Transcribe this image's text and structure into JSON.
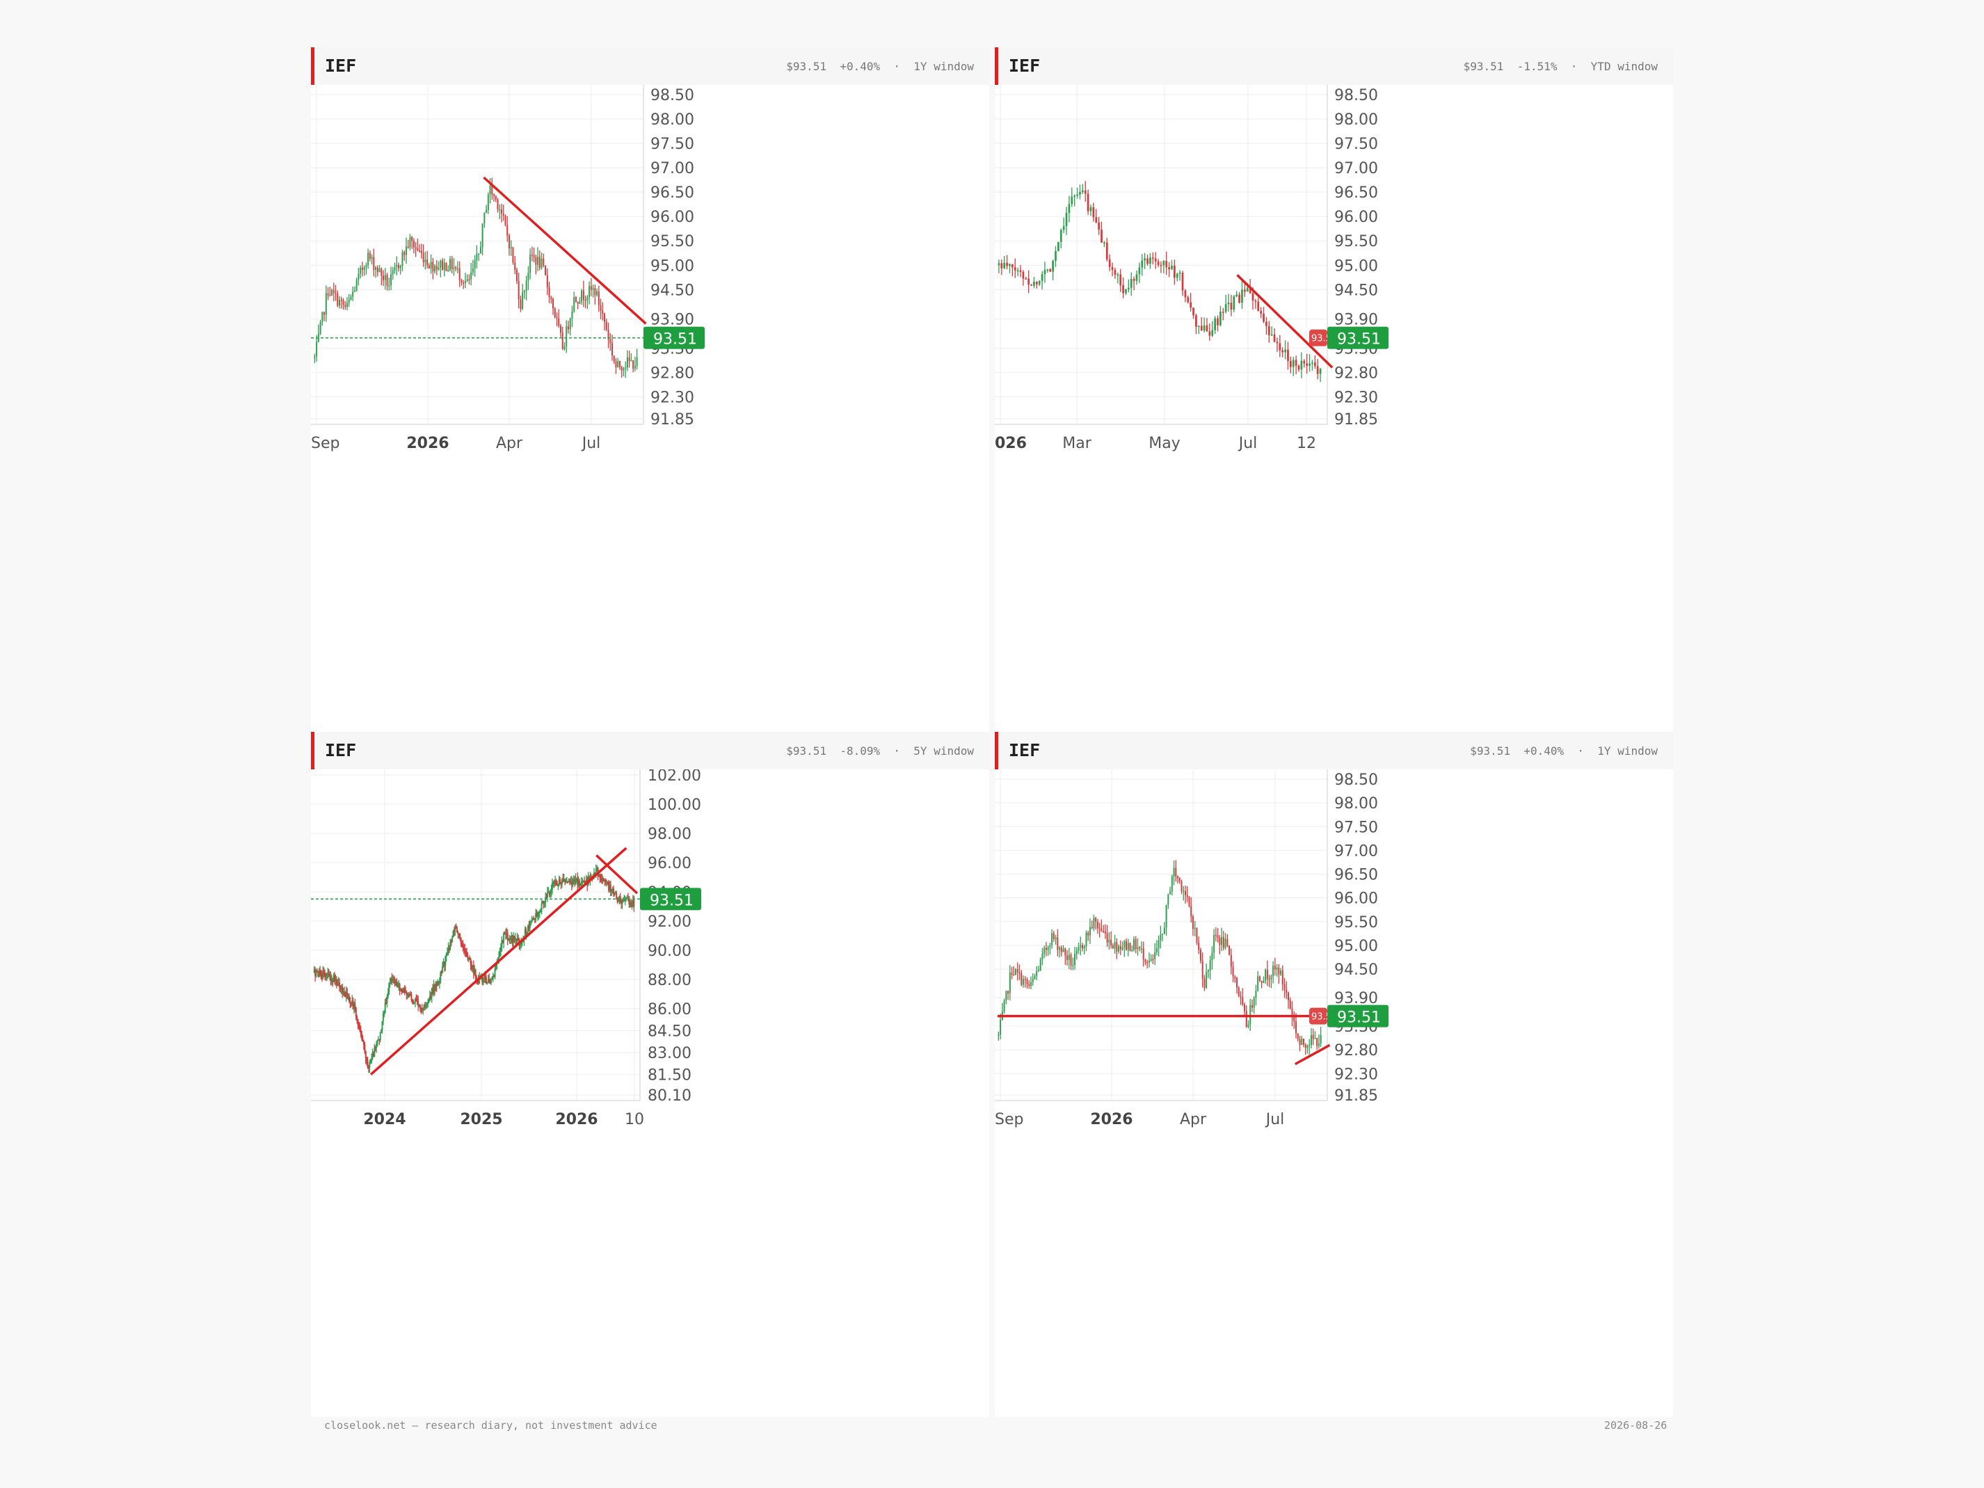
{
  "panels": [
    {
      "ticker": "IEF",
      "price": "$93.51",
      "change": "+0.40%",
      "window": "1Y window",
      "last_label": "93.51",
      "yticks": [
        "98.50",
        "98.00",
        "97.50",
        "97.00",
        "96.50",
        "96.00",
        "95.50",
        "95.00",
        "94.50",
        "93.90",
        "93.30",
        "92.80",
        "92.30",
        "91.85"
      ],
      "xticks": [
        {
          "t": "Sep",
          "b": false
        },
        {
          "t": "2026",
          "b": true
        },
        {
          "t": "Apr",
          "b": false
        },
        {
          "t": "Jul",
          "b": false
        }
      ]
    },
    {
      "ticker": "IEF",
      "price": "$93.51",
      "change": "-1.51%",
      "window": "YTD window",
      "last_label": "93.51",
      "yticks": [
        "98.50",
        "98.00",
        "97.50",
        "97.00",
        "96.50",
        "96.00",
        "95.50",
        "95.00",
        "94.50",
        "93.90",
        "93.30",
        "92.80",
        "92.30",
        "91.85"
      ],
      "xticks": [
        {
          "t": "026",
          "b": true
        },
        {
          "t": "Mar",
          "b": false
        },
        {
          "t": "May",
          "b": false
        },
        {
          "t": "Jul",
          "b": false
        },
        {
          "t": "12",
          "b": false
        }
      ]
    },
    {
      "ticker": "IEF",
      "price": "$93.51",
      "change": "-8.09%",
      "window": "5Y window",
      "last_label": "93.51",
      "yticks": [
        "102.00",
        "100.00",
        "98.00",
        "96.00",
        "94.00",
        "92.00",
        "90.00",
        "88.00",
        "86.00",
        "84.50",
        "83.00",
        "81.50",
        "80.10"
      ],
      "xticks": [
        {
          "t": "2024",
          "b": true
        },
        {
          "t": "2025",
          "b": true
        },
        {
          "t": "2026",
          "b": true
        },
        {
          "t": "10",
          "b": false
        }
      ]
    },
    {
      "ticker": "IEF",
      "price": "$93.51",
      "change": "+0.40%",
      "window": "1Y window",
      "last_label": "93.51",
      "yticks": [
        "98.50",
        "98.00",
        "97.50",
        "97.00",
        "96.50",
        "96.00",
        "95.50",
        "95.00",
        "94.50",
        "93.90",
        "93.30",
        "92.80",
        "92.30",
        "91.85"
      ],
      "xticks": [
        {
          "t": "Sep",
          "b": false
        },
        {
          "t": "2026",
          "b": true
        },
        {
          "t": "Apr",
          "b": false
        },
        {
          "t": "Jul",
          "b": false
        }
      ]
    }
  ],
  "footer": {
    "left": "closelook.net — research diary, not investment advice",
    "right": "2026-08-26"
  },
  "colors": {
    "up": "#2e9e4f",
    "down": "#d33a3a",
    "accent": "#e02020",
    "price_tag": "#1e9e3e",
    "grid": "#eeeeee"
  },
  "chart_data": [
    {
      "type": "candlestick",
      "symbol": "IEF",
      "window": "1Y",
      "last": 93.51,
      "ylim": [
        91.85,
        98.5
      ],
      "anchors": [
        [
          0,
          93.1
        ],
        [
          5,
          94.5
        ],
        [
          12,
          94.1
        ],
        [
          20,
          95.2
        ],
        [
          28,
          94.6
        ],
        [
          36,
          95.5
        ],
        [
          44,
          95.0
        ],
        [
          52,
          95.0
        ],
        [
          58,
          94.6
        ],
        [
          62,
          95.2
        ],
        [
          66,
          96.6
        ],
        [
          70,
          96.2
        ],
        [
          74,
          95.4
        ],
        [
          78,
          94.2
        ],
        [
          82,
          95.2
        ],
        [
          86,
          95.0
        ],
        [
          90,
          94.2
        ],
        [
          94,
          93.3
        ],
        [
          98,
          94.3
        ],
        [
          102,
          94.4
        ],
        [
          106,
          94.5
        ],
        [
          110,
          93.8
        ],
        [
          114,
          92.9
        ],
        [
          118,
          93.0
        ],
        [
          122,
          93.0
        ]
      ],
      "trendlines": [
        {
          "from": [
            64,
            96.8
          ],
          "to": [
            125,
            93.8
          ]
        }
      ],
      "price_line": "dashed"
    },
    {
      "type": "candlestick",
      "symbol": "IEF",
      "window": "YTD",
      "last": 93.51,
      "ylim": [
        91.85,
        98.5
      ],
      "anchors": [
        [
          0,
          95.0
        ],
        [
          5,
          94.9
        ],
        [
          10,
          94.6
        ],
        [
          15,
          95.0
        ],
        [
          20,
          96.3
        ],
        [
          24,
          96.5
        ],
        [
          28,
          95.8
        ],
        [
          32,
          95.0
        ],
        [
          36,
          94.4
        ],
        [
          40,
          95.0
        ],
        [
          44,
          95.2
        ],
        [
          48,
          95.0
        ],
        [
          52,
          94.7
        ],
        [
          56,
          93.8
        ],
        [
          60,
          93.6
        ],
        [
          64,
          94.0
        ],
        [
          68,
          94.3
        ],
        [
          72,
          94.5
        ],
        [
          76,
          93.7
        ],
        [
          80,
          93.3
        ],
        [
          84,
          93.0
        ],
        [
          88,
          92.9
        ],
        [
          92,
          92.9
        ]
      ],
      "trendlines": [
        {
          "from": [
            68,
            94.8
          ],
          "to": [
            95,
            92.9
          ]
        }
      ],
      "price_line": "solid"
    },
    {
      "type": "candlestick",
      "symbol": "IEF",
      "window": "5Y",
      "last": 93.51,
      "ylim": [
        80.1,
        102.0
      ],
      "anchors": [
        [
          0,
          88.5
        ],
        [
          8,
          88.0
        ],
        [
          15,
          86.0
        ],
        [
          20,
          82.0
        ],
        [
          24,
          84.0
        ],
        [
          28,
          88.0
        ],
        [
          34,
          87.0
        ],
        [
          40,
          86.0
        ],
        [
          46,
          88.0
        ],
        [
          52,
          91.5
        ],
        [
          56,
          90.0
        ],
        [
          60,
          88.0
        ],
        [
          66,
          88.0
        ],
        [
          70,
          91.0
        ],
        [
          76,
          90.5
        ],
        [
          80,
          92.0
        ],
        [
          84,
          93.0
        ],
        [
          88,
          94.5
        ],
        [
          94,
          94.8
        ],
        [
          100,
          94.5
        ],
        [
          104,
          95.5
        ],
        [
          108,
          94.5
        ],
        [
          112,
          93.5
        ],
        [
          118,
          93.2
        ]
      ],
      "trendlines": [
        {
          "from": [
            21,
            81.5
          ],
          "to": [
            115,
            97.0
          ]
        },
        {
          "from": [
            104,
            96.5
          ],
          "to": [
            119,
            93.9
          ]
        }
      ],
      "price_line": "dashed"
    },
    {
      "type": "candlestick",
      "symbol": "IEF",
      "window": "1Y",
      "last": 93.51,
      "ylim": [
        91.85,
        98.5
      ],
      "anchors": [
        [
          0,
          93.1
        ],
        [
          5,
          94.5
        ],
        [
          12,
          94.1
        ],
        [
          20,
          95.2
        ],
        [
          28,
          94.6
        ],
        [
          36,
          95.5
        ],
        [
          44,
          95.0
        ],
        [
          52,
          95.0
        ],
        [
          58,
          94.6
        ],
        [
          62,
          95.2
        ],
        [
          66,
          96.6
        ],
        [
          70,
          96.2
        ],
        [
          74,
          95.4
        ],
        [
          78,
          94.2
        ],
        [
          82,
          95.2
        ],
        [
          86,
          95.0
        ],
        [
          90,
          94.2
        ],
        [
          94,
          93.3
        ],
        [
          98,
          94.3
        ],
        [
          102,
          94.4
        ],
        [
          106,
          94.5
        ],
        [
          110,
          93.8
        ],
        [
          114,
          92.9
        ],
        [
          118,
          93.0
        ],
        [
          122,
          93.0
        ]
      ],
      "trendlines": [
        {
          "from": [
            0,
            93.51
          ],
          "to": [
            125,
            93.51
          ]
        },
        {
          "from": [
            112,
            92.5
          ],
          "to": [
            125,
            92.9
          ]
        }
      ],
      "price_line": "solid"
    }
  ]
}
